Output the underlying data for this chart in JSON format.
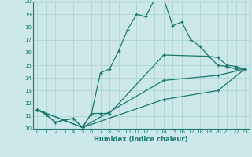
{
  "xlabel": "Humidex (Indice chaleur)",
  "xlim": [
    -0.5,
    23.5
  ],
  "ylim": [
    10,
    20
  ],
  "xticks": [
    0,
    1,
    2,
    3,
    4,
    5,
    6,
    7,
    8,
    9,
    10,
    11,
    12,
    13,
    14,
    15,
    16,
    17,
    18,
    19,
    20,
    21,
    22,
    23
  ],
  "yticks": [
    10,
    11,
    12,
    13,
    14,
    15,
    16,
    17,
    18,
    19,
    20
  ],
  "bg_color": "#cce8e8",
  "line_color": "#1a7a6e",
  "grid_color": "#afd4d0",
  "lines": [
    {
      "x": [
        0,
        1,
        2,
        3,
        4,
        5,
        6,
        7,
        8,
        9,
        10,
        11,
        12,
        13,
        14,
        15,
        16,
        17,
        18,
        19,
        20,
        21,
        22,
        23
      ],
      "y": [
        11.5,
        11.1,
        10.5,
        10.7,
        10.8,
        10.1,
        11.2,
        14.4,
        14.7,
        16.1,
        17.8,
        19.0,
        18.8,
        20.2,
        20.2,
        18.1,
        18.4,
        17.0,
        16.5,
        15.7,
        15.0,
        14.9,
        14.7,
        14.7
      ]
    },
    {
      "x": [
        0,
        1,
        2,
        3,
        4,
        5,
        6,
        7,
        8,
        14,
        19,
        20,
        21,
        22,
        23
      ],
      "y": [
        11.5,
        11.1,
        10.5,
        10.7,
        10.8,
        10.1,
        11.2,
        11.2,
        11.2,
        15.8,
        15.7,
        15.6,
        15.0,
        14.9,
        14.7
      ]
    },
    {
      "x": [
        0,
        5,
        14,
        20,
        23
      ],
      "y": [
        11.5,
        10.1,
        13.8,
        14.2,
        14.7
      ]
    },
    {
      "x": [
        0,
        5,
        14,
        20,
        23
      ],
      "y": [
        11.5,
        10.1,
        12.3,
        13.0,
        14.7
      ]
    }
  ]
}
